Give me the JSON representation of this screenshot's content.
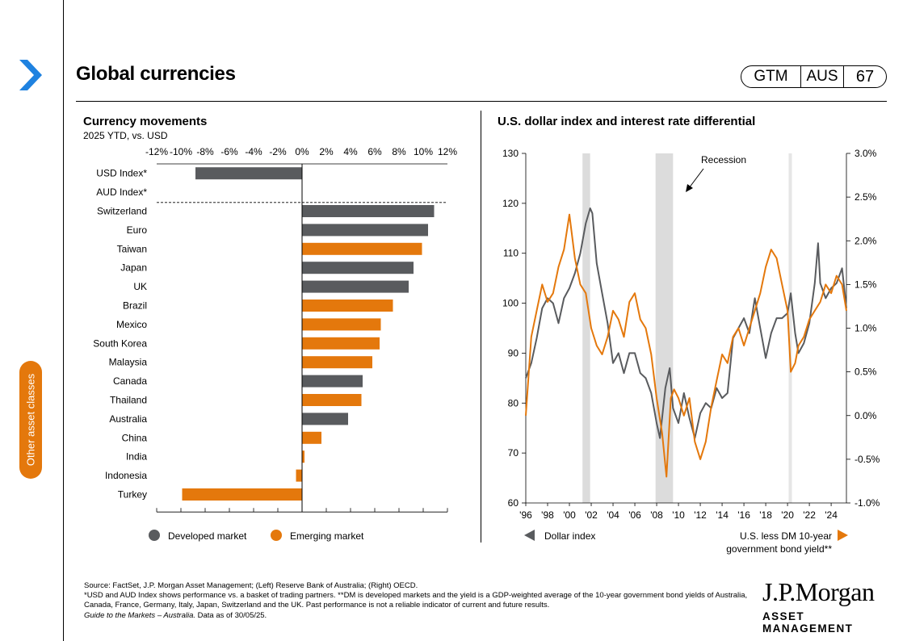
{
  "page": {
    "title": "Global currencies",
    "badge": {
      "code": "GTM",
      "region": "AUS",
      "page_number": "67"
    },
    "side_tab": "Other asset classes",
    "logo": {
      "name": "J.P.Morgan",
      "subtitle": "ASSET MANAGEMENT"
    },
    "footnotes": [
      "Source: FactSet, J.P. Morgan Asset Management; (Left) Reserve Bank of Australia; (Right) OECD.",
      "*USD and AUD Index shows performance vs. a basket of trading partners. **DM is developed markets and the yield is a GDP-weighted average of the 10-year government bond yields of Australia, Canada, France, Germany, Italy, Japan, Switzerland and the UK. Past performance is not a reliable indicator of current and future results."
    ],
    "footnote_italic": "Guide to the Markets – Australia.",
    "footnote_date": " Data as of 30/05/25."
  },
  "chart_data": [
    {
      "type": "bar",
      "orientation": "horizontal",
      "title": "Currency movements",
      "subtitle": "2025 YTD, vs. USD",
      "xlim": [
        -0.12,
        0.12
      ],
      "xtick_labels": [
        "-12%",
        "-10%",
        "-8%",
        "-6%",
        "-4%",
        "-2%",
        "0%",
        "2%",
        "4%",
        "6%",
        "8%",
        "10%",
        "12%"
      ],
      "categories": [
        "USD Index*",
        "AUD Index*",
        "Switzerland",
        "Euro",
        "Taiwan",
        "Japan",
        "UK",
        "Brazil",
        "Mexico",
        "South Korea",
        "Malaysia",
        "Canada",
        "Thailand",
        "Australia",
        "China",
        "India",
        "Indonesia",
        "Turkey"
      ],
      "values": [
        -0.088,
        0.0,
        0.109,
        0.104,
        0.099,
        0.092,
        0.088,
        0.075,
        0.065,
        0.064,
        0.058,
        0.05,
        0.049,
        0.038,
        0.016,
        0.002,
        -0.005,
        -0.099
      ],
      "groups": [
        "developed",
        "developed",
        "developed",
        "developed",
        "emerging",
        "developed",
        "developed",
        "emerging",
        "emerging",
        "emerging",
        "emerging",
        "developed",
        "emerging",
        "developed",
        "emerging",
        "emerging",
        "emerging",
        "emerging"
      ],
      "legend": [
        {
          "key": "developed",
          "label": "Developed  market",
          "color": "#595b5e"
        },
        {
          "key": "emerging",
          "label": "Emerging market",
          "color": "#e4780c"
        }
      ]
    },
    {
      "type": "line",
      "title": "U.S. dollar index and interest rate differential",
      "left_axis": {
        "ylim": [
          60,
          130
        ],
        "ticks": [
          60,
          70,
          80,
          90,
          100,
          110,
          120,
          130
        ]
      },
      "right_axis": {
        "ylim": [
          -1.0,
          3.0
        ],
        "tick_labels": [
          "-1.0%",
          "-0.5%",
          "0.0%",
          "0.5%",
          "1.0%",
          "1.5%",
          "2.0%",
          "2.5%",
          "3.0%"
        ]
      },
      "xlim": [
        1996,
        2025.4
      ],
      "xtick_labels": [
        "'96",
        "'98",
        "'00",
        "'02",
        "'04",
        "'06",
        "'08",
        "'10",
        "'12",
        "'14",
        "'16",
        "'18",
        "'20",
        "'22",
        "'24"
      ],
      "recessions": [
        [
          2001.2,
          2001.9
        ],
        [
          2007.9,
          2009.5
        ],
        [
          2020.1,
          2020.4
        ]
      ],
      "recession_label": "Recession",
      "series": [
        {
          "name": "Dollar index",
          "axis": "left",
          "color": "#595b5e",
          "points": [
            [
              1996.0,
              85
            ],
            [
              1996.5,
              88
            ],
            [
              1997.0,
              93
            ],
            [
              1997.5,
              99
            ],
            [
              1998.0,
              101
            ],
            [
              1998.5,
              100
            ],
            [
              1999.0,
              96
            ],
            [
              1999.5,
              101
            ],
            [
              2000.0,
              103
            ],
            [
              2000.5,
              106
            ],
            [
              2001.0,
              110
            ],
            [
              2001.5,
              116
            ],
            [
              2001.9,
              119
            ],
            [
              2002.1,
              118
            ],
            [
              2002.5,
              108
            ],
            [
              2003.0,
              102
            ],
            [
              2003.5,
              96
            ],
            [
              2004.0,
              88
            ],
            [
              2004.5,
              90
            ],
            [
              2005.0,
              86
            ],
            [
              2005.5,
              90
            ],
            [
              2006.0,
              90
            ],
            [
              2006.5,
              86
            ],
            [
              2007.0,
              85
            ],
            [
              2007.5,
              82
            ],
            [
              2008.0,
              76
            ],
            [
              2008.3,
              73
            ],
            [
              2008.8,
              83
            ],
            [
              2009.2,
              87
            ],
            [
              2009.5,
              79
            ],
            [
              2010.0,
              76
            ],
            [
              2010.5,
              82
            ],
            [
              2011.0,
              77
            ],
            [
              2011.5,
              73
            ],
            [
              2012.0,
              78
            ],
            [
              2012.5,
              80
            ],
            [
              2013.0,
              79
            ],
            [
              2013.5,
              83
            ],
            [
              2014.0,
              81
            ],
            [
              2014.5,
              82
            ],
            [
              2015.0,
              93
            ],
            [
              2015.5,
              95
            ],
            [
              2016.0,
              97
            ],
            [
              2016.5,
              94
            ],
            [
              2017.0,
              101
            ],
            [
              2017.5,
              95
            ],
            [
              2018.0,
              89
            ],
            [
              2018.5,
              94
            ],
            [
              2019.0,
              97
            ],
            [
              2019.5,
              97
            ],
            [
              2020.0,
              98
            ],
            [
              2020.3,
              102
            ],
            [
              2020.7,
              94
            ],
            [
              2021.0,
              90
            ],
            [
              2021.5,
              92
            ],
            [
              2022.0,
              96
            ],
            [
              2022.5,
              104
            ],
            [
              2022.8,
              112
            ],
            [
              2023.0,
              104
            ],
            [
              2023.5,
              101
            ],
            [
              2024.0,
              103
            ],
            [
              2024.5,
              104
            ],
            [
              2025.0,
              107
            ],
            [
              2025.4,
              99
            ]
          ]
        },
        {
          "name": "U.S. less DM 10-year government  bond yield**",
          "axis": "right",
          "color": "#e4780c",
          "points": [
            [
              1996.0,
              0.0
            ],
            [
              1996.5,
              0.9
            ],
            [
              1997.0,
              1.2
            ],
            [
              1997.5,
              1.5
            ],
            [
              1998.0,
              1.3
            ],
            [
              1998.5,
              1.4
            ],
            [
              1999.0,
              1.7
            ],
            [
              1999.5,
              1.9
            ],
            [
              2000.0,
              2.3
            ],
            [
              2000.5,
              1.8
            ],
            [
              2001.0,
              1.5
            ],
            [
              2001.5,
              1.4
            ],
            [
              2002.0,
              1.0
            ],
            [
              2002.5,
              0.8
            ],
            [
              2003.0,
              0.7
            ],
            [
              2003.5,
              0.9
            ],
            [
              2004.0,
              1.2
            ],
            [
              2004.5,
              1.1
            ],
            [
              2005.0,
              0.9
            ],
            [
              2005.5,
              1.3
            ],
            [
              2006.0,
              1.4
            ],
            [
              2006.5,
              1.1
            ],
            [
              2007.0,
              1.0
            ],
            [
              2007.5,
              0.7
            ],
            [
              2008.0,
              0.2
            ],
            [
              2008.5,
              -0.2
            ],
            [
              2008.9,
              -0.7
            ],
            [
              2009.3,
              0.2
            ],
            [
              2009.6,
              0.3
            ],
            [
              2010.0,
              0.2
            ],
            [
              2010.5,
              0.0
            ],
            [
              2011.0,
              0.2
            ],
            [
              2011.5,
              -0.3
            ],
            [
              2012.0,
              -0.5
            ],
            [
              2012.5,
              -0.3
            ],
            [
              2013.0,
              0.1
            ],
            [
              2013.5,
              0.4
            ],
            [
              2014.0,
              0.7
            ],
            [
              2014.5,
              0.6
            ],
            [
              2015.0,
              0.9
            ],
            [
              2015.5,
              1.0
            ],
            [
              2016.0,
              0.8
            ],
            [
              2016.5,
              1.0
            ],
            [
              2017.0,
              1.2
            ],
            [
              2017.5,
              1.4
            ],
            [
              2018.0,
              1.7
            ],
            [
              2018.5,
              1.9
            ],
            [
              2019.0,
              1.8
            ],
            [
              2019.5,
              1.5
            ],
            [
              2020.0,
              1.2
            ],
            [
              2020.3,
              0.5
            ],
            [
              2020.7,
              0.6
            ],
            [
              2021.0,
              0.8
            ],
            [
              2021.5,
              0.9
            ],
            [
              2022.0,
              1.1
            ],
            [
              2022.5,
              1.2
            ],
            [
              2023.0,
              1.3
            ],
            [
              2023.5,
              1.5
            ],
            [
              2024.0,
              1.4
            ],
            [
              2024.5,
              1.6
            ],
            [
              2025.0,
              1.5
            ],
            [
              2025.4,
              1.2
            ]
          ]
        }
      ],
      "legend": [
        {
          "label": "Dollar index",
          "marker": "triangle-left",
          "color": "#595b5e"
        },
        {
          "label": "U.S. less DM 10-year government  bond yield**",
          "marker": "triangle-right",
          "color": "#e4780c"
        }
      ]
    }
  ]
}
